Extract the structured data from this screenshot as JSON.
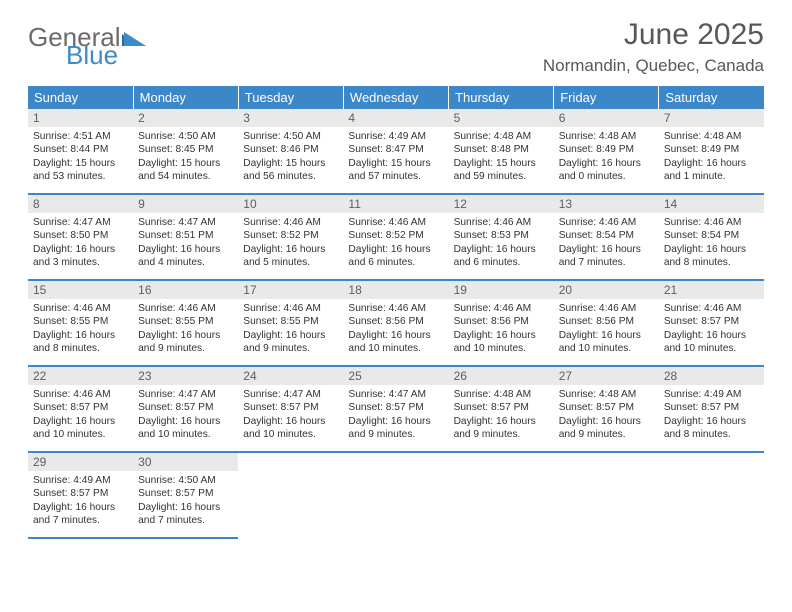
{
  "brand": {
    "general": "General",
    "blue": "Blue"
  },
  "header": {
    "title": "June 2025",
    "location": "Normandin, Quebec, Canada"
  },
  "colors": {
    "header_bg": "#3b87c8",
    "rule": "#3b87c8",
    "daynum_bg": "#e9e9e9",
    "text_dark": "#333333",
    "text_mid": "#585858",
    "logo_blue": "#3c8bc7"
  },
  "weekdays": [
    "Sunday",
    "Monday",
    "Tuesday",
    "Wednesday",
    "Thursday",
    "Friday",
    "Saturday"
  ],
  "days": [
    {
      "n": "1",
      "sr": "4:51 AM",
      "ss": "8:44 PM",
      "dl": "15 hours and 53 minutes."
    },
    {
      "n": "2",
      "sr": "4:50 AM",
      "ss": "8:45 PM",
      "dl": "15 hours and 54 minutes."
    },
    {
      "n": "3",
      "sr": "4:50 AM",
      "ss": "8:46 PM",
      "dl": "15 hours and 56 minutes."
    },
    {
      "n": "4",
      "sr": "4:49 AM",
      "ss": "8:47 PM",
      "dl": "15 hours and 57 minutes."
    },
    {
      "n": "5",
      "sr": "4:48 AM",
      "ss": "8:48 PM",
      "dl": "15 hours and 59 minutes."
    },
    {
      "n": "6",
      "sr": "4:48 AM",
      "ss": "8:49 PM",
      "dl": "16 hours and 0 minutes."
    },
    {
      "n": "7",
      "sr": "4:48 AM",
      "ss": "8:49 PM",
      "dl": "16 hours and 1 minute."
    },
    {
      "n": "8",
      "sr": "4:47 AM",
      "ss": "8:50 PM",
      "dl": "16 hours and 3 minutes."
    },
    {
      "n": "9",
      "sr": "4:47 AM",
      "ss": "8:51 PM",
      "dl": "16 hours and 4 minutes."
    },
    {
      "n": "10",
      "sr": "4:46 AM",
      "ss": "8:52 PM",
      "dl": "16 hours and 5 minutes."
    },
    {
      "n": "11",
      "sr": "4:46 AM",
      "ss": "8:52 PM",
      "dl": "16 hours and 6 minutes."
    },
    {
      "n": "12",
      "sr": "4:46 AM",
      "ss": "8:53 PM",
      "dl": "16 hours and 6 minutes."
    },
    {
      "n": "13",
      "sr": "4:46 AM",
      "ss": "8:54 PM",
      "dl": "16 hours and 7 minutes."
    },
    {
      "n": "14",
      "sr": "4:46 AM",
      "ss": "8:54 PM",
      "dl": "16 hours and 8 minutes."
    },
    {
      "n": "15",
      "sr": "4:46 AM",
      "ss": "8:55 PM",
      "dl": "16 hours and 8 minutes."
    },
    {
      "n": "16",
      "sr": "4:46 AM",
      "ss": "8:55 PM",
      "dl": "16 hours and 9 minutes."
    },
    {
      "n": "17",
      "sr": "4:46 AM",
      "ss": "8:55 PM",
      "dl": "16 hours and 9 minutes."
    },
    {
      "n": "18",
      "sr": "4:46 AM",
      "ss": "8:56 PM",
      "dl": "16 hours and 10 minutes."
    },
    {
      "n": "19",
      "sr": "4:46 AM",
      "ss": "8:56 PM",
      "dl": "16 hours and 10 minutes."
    },
    {
      "n": "20",
      "sr": "4:46 AM",
      "ss": "8:56 PM",
      "dl": "16 hours and 10 minutes."
    },
    {
      "n": "21",
      "sr": "4:46 AM",
      "ss": "8:57 PM",
      "dl": "16 hours and 10 minutes."
    },
    {
      "n": "22",
      "sr": "4:46 AM",
      "ss": "8:57 PM",
      "dl": "16 hours and 10 minutes."
    },
    {
      "n": "23",
      "sr": "4:47 AM",
      "ss": "8:57 PM",
      "dl": "16 hours and 10 minutes."
    },
    {
      "n": "24",
      "sr": "4:47 AM",
      "ss": "8:57 PM",
      "dl": "16 hours and 10 minutes."
    },
    {
      "n": "25",
      "sr": "4:47 AM",
      "ss": "8:57 PM",
      "dl": "16 hours and 9 minutes."
    },
    {
      "n": "26",
      "sr": "4:48 AM",
      "ss": "8:57 PM",
      "dl": "16 hours and 9 minutes."
    },
    {
      "n": "27",
      "sr": "4:48 AM",
      "ss": "8:57 PM",
      "dl": "16 hours and 9 minutes."
    },
    {
      "n": "28",
      "sr": "4:49 AM",
      "ss": "8:57 PM",
      "dl": "16 hours and 8 minutes."
    },
    {
      "n": "29",
      "sr": "4:49 AM",
      "ss": "8:57 PM",
      "dl": "16 hours and 7 minutes."
    },
    {
      "n": "30",
      "sr": "4:50 AM",
      "ss": "8:57 PM",
      "dl": "16 hours and 7 minutes."
    }
  ],
  "labels": {
    "sunrise": "Sunrise:",
    "sunset": "Sunset:",
    "daylight": "Daylight:"
  },
  "layout": {
    "start_weekday": 0,
    "cols": 7
  }
}
